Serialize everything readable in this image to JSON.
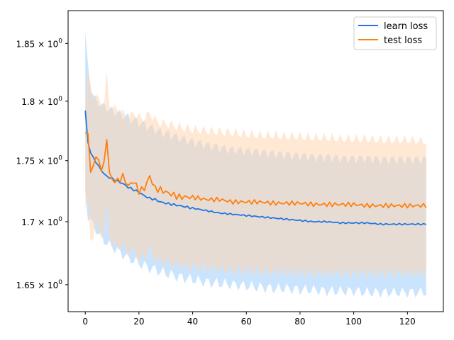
{
  "chart_data": {
    "type": "line",
    "title": "",
    "xlabel": "",
    "ylabel": "",
    "y_scale": "log",
    "xlim": [
      -6.4,
      133.4
    ],
    "ylim": [
      1.629,
      1.879
    ],
    "grid": false,
    "legend": {
      "placement": "top-right"
    },
    "x_ticks": [
      {
        "value": 0,
        "label": "0"
      },
      {
        "value": 20,
        "label": "20"
      },
      {
        "value": 40,
        "label": "40"
      },
      {
        "value": 60,
        "label": "60"
      },
      {
        "value": 80,
        "label": "80"
      },
      {
        "value": 100,
        "label": "100"
      },
      {
        "value": 120,
        "label": "120"
      }
    ],
    "y_ticks": [
      {
        "value": 1.65,
        "mantissa": "1.65",
        "times": "×",
        "base": "10",
        "exp": "0"
      },
      {
        "value": 1.7,
        "mantissa": "1.7",
        "times": "×",
        "base": "10",
        "exp": "0"
      },
      {
        "value": 1.75,
        "mantissa": "1.75",
        "times": "×",
        "base": "10",
        "exp": "0"
      },
      {
        "value": 1.8,
        "mantissa": "1.8",
        "times": "×",
        "base": "10",
        "exp": "0"
      },
      {
        "value": 1.85,
        "mantissa": "1.85",
        "times": "×",
        "base": "10",
        "exp": "0"
      }
    ],
    "x_keypoints": [
      0,
      1,
      2,
      3,
      4,
      5,
      6,
      7,
      8,
      9,
      10,
      12,
      14,
      16,
      18,
      20,
      22,
      24,
      26,
      28,
      30,
      35,
      40,
      45,
      50,
      55,
      60,
      65,
      70,
      75,
      80,
      85,
      90,
      95,
      100,
      105,
      110,
      115,
      120,
      127
    ],
    "series": [
      {
        "name": "learn loss",
        "color": "#1f77e0",
        "band_color": "#a9d2fb",
        "mean": [
          1.792,
          1.765,
          1.757,
          1.752,
          1.749,
          1.745,
          1.742,
          1.739,
          1.737,
          1.736,
          1.735,
          1.733,
          1.731,
          1.728,
          1.726,
          1.724,
          1.721,
          1.719,
          1.718,
          1.716,
          1.715,
          1.713,
          1.711,
          1.709,
          1.707,
          1.706,
          1.705,
          1.704,
          1.703,
          1.702,
          1.701,
          1.7,
          1.7,
          1.699,
          1.699,
          1.699,
          1.698,
          1.698,
          1.698,
          1.698
        ],
        "upper": [
          1.86,
          1.828,
          1.812,
          1.805,
          1.8,
          1.799,
          1.797,
          1.795,
          1.795,
          1.793,
          1.792,
          1.79,
          1.788,
          1.786,
          1.784,
          1.782,
          1.78,
          1.778,
          1.776,
          1.774,
          1.773,
          1.769,
          1.766,
          1.763,
          1.761,
          1.759,
          1.758,
          1.757,
          1.756,
          1.755,
          1.754,
          1.753,
          1.753,
          1.752,
          1.752,
          1.752,
          1.751,
          1.751,
          1.751,
          1.751
        ],
        "lower": [
          1.725,
          1.705,
          1.7,
          1.697,
          1.694,
          1.69,
          1.687,
          1.685,
          1.683,
          1.681,
          1.68,
          1.677,
          1.674,
          1.671,
          1.669,
          1.667,
          1.665,
          1.663,
          1.662,
          1.66,
          1.659,
          1.656,
          1.654,
          1.652,
          1.651,
          1.65,
          1.649,
          1.648,
          1.647,
          1.647,
          1.646,
          1.646,
          1.645,
          1.645,
          1.645,
          1.644,
          1.644,
          1.644,
          1.644,
          1.644
        ]
      },
      {
        "name": "test loss",
        "color": "#ff7f0e",
        "band_color": "#ffd5b0",
        "mean": [
          1.771,
          1.774,
          1.74,
          1.745,
          1.755,
          1.748,
          1.744,
          1.747,
          1.769,
          1.74,
          1.734,
          1.733,
          1.737,
          1.729,
          1.733,
          1.725,
          1.727,
          1.737,
          1.727,
          1.726,
          1.724,
          1.72,
          1.72,
          1.718,
          1.718,
          1.716,
          1.716,
          1.716,
          1.715,
          1.715,
          1.715,
          1.714,
          1.714,
          1.714,
          1.714,
          1.713,
          1.713,
          1.713,
          1.713,
          1.713
        ],
        "upper": [
          1.795,
          1.83,
          1.81,
          1.8,
          1.81,
          1.8,
          1.795,
          1.8,
          1.823,
          1.795,
          1.795,
          1.792,
          1.79,
          1.785,
          1.79,
          1.786,
          1.785,
          1.79,
          1.784,
          1.781,
          1.781,
          1.778,
          1.776,
          1.775,
          1.774,
          1.773,
          1.772,
          1.771,
          1.771,
          1.77,
          1.77,
          1.769,
          1.769,
          1.768,
          1.768,
          1.768,
          1.767,
          1.767,
          1.767,
          1.766
        ],
        "lower": [
          1.712,
          1.715,
          1.685,
          1.69,
          1.7,
          1.692,
          1.69,
          1.692,
          1.715,
          1.69,
          1.681,
          1.68,
          1.68,
          1.675,
          1.678,
          1.67,
          1.672,
          1.678,
          1.67,
          1.668,
          1.668,
          1.665,
          1.664,
          1.663,
          1.662,
          1.661,
          1.661,
          1.66,
          1.66,
          1.66,
          1.659,
          1.659,
          1.659,
          1.659,
          1.659,
          1.659,
          1.659,
          1.659,
          1.659,
          1.659
        ]
      }
    ]
  }
}
